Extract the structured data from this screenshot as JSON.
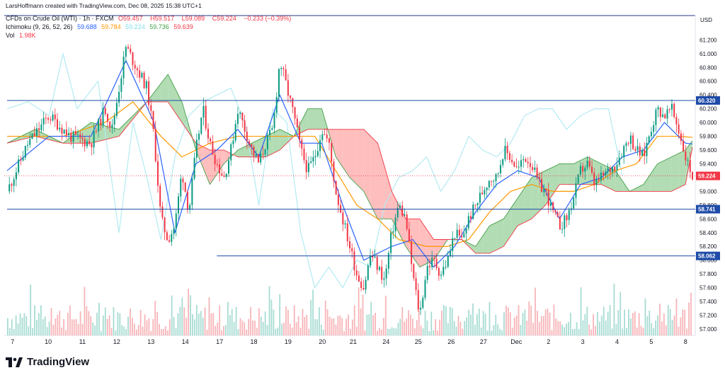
{
  "header": {
    "credit": "LarsHoffmann created with TradingView.com, Dec 08, 2025 15:38 UTC+1",
    "symbol": "CFDs on Crude Oil (WTI) · 1h · FXCM",
    "o_label": "O",
    "o_value": "59.457",
    "h_label": "H",
    "h_value": "59.517",
    "l_label": "L",
    "l_value": "59.089",
    "c_label": "C",
    "c_value": "59.224",
    "change": "−0.233 (−0.39%)",
    "ichimoku_label": "Ichimoku (9, 26, 52, 26)",
    "ichimoku_values": [
      "59.688",
      "59.784",
      "59.224",
      "59.736",
      "59.639"
    ],
    "vol_label": "Vol",
    "vol_value": "1.98K"
  },
  "brand": "TradingView",
  "colors": {
    "up": "#089981",
    "down": "#f23645",
    "tenkan": "#2962ff",
    "kijun": "#ff9800",
    "chikou": "#b2ebf2",
    "span_a": "#43a047",
    "span_b": "#f23645",
    "cloud_up": "#a5d6a7",
    "cloud_down": "#ffb3b3",
    "hline": "#1e4ba8"
  },
  "chart_data": {
    "type": "candlestick",
    "currency": "USD",
    "y_range": [
      56.9,
      61.35
    ],
    "y_ticks": [
      "61.200",
      "61.000",
      "60.800",
      "60.600",
      "60.400",
      "60.200",
      "60.000",
      "59.800",
      "59.600",
      "59.400",
      "59.200",
      "59.000",
      "58.800",
      "58.600",
      "58.400",
      "58.200",
      "58.000",
      "57.800",
      "57.600",
      "57.400",
      "57.200",
      "57.000"
    ],
    "x_labels": [
      "7",
      "10",
      "11",
      "12",
      "13",
      "14",
      "17",
      "18",
      "19",
      "20",
      "21",
      "24",
      "25",
      "26",
      "27",
      "Dec",
      "2",
      "3",
      "4",
      "5",
      "8"
    ],
    "price_path": [
      [
        0,
        59.0
      ],
      [
        3,
        59.7
      ],
      [
        6,
        60.1
      ],
      [
        9,
        59.8
      ],
      [
        12,
        59.7
      ],
      [
        14,
        60.2
      ],
      [
        15,
        59.9
      ],
      [
        17,
        61.1
      ],
      [
        18,
        60.9
      ],
      [
        20,
        60.5
      ],
      [
        21,
        59.8
      ],
      [
        22,
        58.6
      ],
      [
        23,
        58.3
      ],
      [
        24,
        58.5
      ],
      [
        25,
        59.3
      ],
      [
        26,
        58.7
      ],
      [
        27,
        59.6
      ],
      [
        28,
        60.2
      ],
      [
        29,
        59.7
      ],
      [
        30,
        59.4
      ],
      [
        31,
        59.2
      ],
      [
        32,
        59.6
      ],
      [
        33,
        60.2
      ],
      [
        34,
        59.9
      ],
      [
        35,
        59.6
      ],
      [
        36,
        59.4
      ],
      [
        37,
        59.7
      ],
      [
        38,
        59.9
      ],
      [
        39,
        60.9
      ],
      [
        40,
        60.5
      ],
      [
        41,
        60.1
      ],
      [
        42,
        59.6
      ],
      [
        43,
        59.3
      ],
      [
        44,
        59.5
      ],
      [
        45,
        59.9
      ],
      [
        46,
        59.7
      ],
      [
        47,
        59.0
      ],
      [
        48,
        58.6
      ],
      [
        49,
        58.2
      ],
      [
        50,
        57.8
      ],
      [
        51,
        57.6
      ],
      [
        52,
        58.1
      ],
      [
        53,
        57.9
      ],
      [
        54,
        57.7
      ],
      [
        55,
        58.4
      ],
      [
        56,
        58.8
      ],
      [
        57,
        58.6
      ],
      [
        58,
        57.8
      ],
      [
        59,
        57.2
      ],
      [
        60,
        57.9
      ],
      [
        61,
        58.0
      ],
      [
        62,
        57.8
      ],
      [
        63,
        58.0
      ],
      [
        64,
        58.4
      ],
      [
        65,
        58.3
      ],
      [
        66,
        58.6
      ],
      [
        67,
        58.8
      ],
      [
        68,
        59.0
      ],
      [
        69,
        59.2
      ],
      [
        70,
        59.2
      ],
      [
        71,
        59.6
      ],
      [
        72,
        59.5
      ],
      [
        73,
        59.3
      ],
      [
        74,
        59.5
      ],
      [
        75,
        59.4
      ],
      [
        76,
        59.1
      ],
      [
        77,
        59.0
      ],
      [
        78,
        58.7
      ],
      [
        79,
        58.5
      ],
      [
        80,
        58.6
      ],
      [
        81,
        58.9
      ],
      [
        82,
        59.3
      ],
      [
        83,
        59.4
      ],
      [
        84,
        59.1
      ],
      [
        85,
        59.2
      ],
      [
        86,
        59.3
      ],
      [
        87,
        59.4
      ],
      [
        88,
        59.6
      ],
      [
        89,
        59.8
      ],
      [
        90,
        59.6
      ],
      [
        91,
        59.5
      ],
      [
        92,
        59.9
      ],
      [
        93,
        60.2
      ],
      [
        94,
        60.1
      ],
      [
        95,
        60.2
      ],
      [
        96,
        59.9
      ],
      [
        97,
        59.5
      ],
      [
        98,
        59.224
      ]
    ],
    "tenkan_path": [
      [
        0,
        59.3
      ],
      [
        6,
        59.8
      ],
      [
        12,
        59.8
      ],
      [
        17,
        60.9
      ],
      [
        21,
        60.0
      ],
      [
        24,
        58.4
      ],
      [
        27,
        59.4
      ],
      [
        30,
        59.6
      ],
      [
        33,
        59.9
      ],
      [
        36,
        59.5
      ],
      [
        39,
        60.4
      ],
      [
        42,
        59.7
      ],
      [
        45,
        59.7
      ],
      [
        48,
        58.8
      ],
      [
        51,
        58.0
      ],
      [
        55,
        58.2
      ],
      [
        58,
        58.3
      ],
      [
        61,
        57.9
      ],
      [
        64,
        58.2
      ],
      [
        67,
        58.7
      ],
      [
        70,
        59.1
      ],
      [
        73,
        59.3
      ],
      [
        76,
        59.2
      ],
      [
        79,
        58.6
      ],
      [
        82,
        59.1
      ],
      [
        85,
        59.2
      ],
      [
        88,
        59.5
      ],
      [
        91,
        59.6
      ],
      [
        94,
        60.0
      ],
      [
        97,
        59.7
      ],
      [
        98,
        59.688
      ]
    ],
    "kijun_path": [
      [
        0,
        59.8
      ],
      [
        8,
        59.8
      ],
      [
        14,
        60.0
      ],
      [
        18,
        60.3
      ],
      [
        22,
        59.8
      ],
      [
        25,
        59.5
      ],
      [
        29,
        59.7
      ],
      [
        33,
        59.8
      ],
      [
        37,
        59.8
      ],
      [
        41,
        59.8
      ],
      [
        44,
        59.8
      ],
      [
        47,
        59.3
      ],
      [
        50,
        58.8
      ],
      [
        53,
        58.6
      ],
      [
        56,
        58.3
      ],
      [
        60,
        58.2
      ],
      [
        63,
        58.2
      ],
      [
        66,
        58.3
      ],
      [
        69,
        58.7
      ],
      [
        72,
        59.0
      ],
      [
        75,
        59.1
      ],
      [
        78,
        59.0
      ],
      [
        81,
        59.0
      ],
      [
        84,
        59.1
      ],
      [
        87,
        59.3
      ],
      [
        90,
        59.4
      ],
      [
        93,
        59.8
      ],
      [
        96,
        59.8
      ],
      [
        98,
        59.784
      ]
    ],
    "chikou_path": [
      [
        0,
        60.2
      ],
      [
        3,
        60.3
      ],
      [
        6,
        60.1
      ],
      [
        8,
        61.0
      ],
      [
        10,
        60.2
      ],
      [
        13,
        60.6
      ],
      [
        16,
        58.4
      ],
      [
        18,
        60.0
      ],
      [
        20,
        59.2
      ],
      [
        22,
        58.3
      ],
      [
        24,
        59.5
      ],
      [
        26,
        60.1
      ],
      [
        28,
        60.3
      ],
      [
        30,
        60.4
      ],
      [
        32,
        60.5
      ],
      [
        34,
        60.0
      ],
      [
        36,
        58.8
      ],
      [
        38,
        60.2
      ],
      [
        40,
        60.0
      ],
      [
        42,
        58.4
      ],
      [
        44,
        57.6
      ],
      [
        46,
        57.9
      ],
      [
        48,
        57.6
      ],
      [
        50,
        58.0
      ],
      [
        52,
        57.9
      ],
      [
        54,
        58.8
      ],
      [
        56,
        59.2
      ],
      [
        58,
        59.3
      ],
      [
        60,
        59.5
      ],
      [
        62,
        59.0
      ],
      [
        64,
        59.3
      ],
      [
        66,
        59.8
      ],
      [
        68,
        59.6
      ],
      [
        70,
        59.5
      ],
      [
        72,
        59.7
      ],
      [
        74,
        60.1
      ],
      [
        76,
        60.2
      ],
      [
        78,
        60.2
      ],
      [
        80,
        59.9
      ],
      [
        82,
        60.1
      ],
      [
        84,
        60.2
      ],
      [
        86,
        60.2
      ],
      [
        88,
        59.224
      ]
    ],
    "span_a_path": [
      [
        0,
        59.7
      ],
      [
        4,
        59.9
      ],
      [
        8,
        59.7
      ],
      [
        12,
        60.0
      ],
      [
        16,
        59.9
      ],
      [
        20,
        60.3
      ],
      [
        23,
        60.7
      ],
      [
        25,
        60.3
      ],
      [
        27,
        59.6
      ],
      [
        29,
        59.1
      ],
      [
        31,
        59.4
      ],
      [
        33,
        59.6
      ],
      [
        35,
        59.7
      ],
      [
        37,
        59.8
      ],
      [
        39,
        59.9
      ],
      [
        41,
        59.8
      ],
      [
        43,
        60.2
      ],
      [
        45,
        60.2
      ],
      [
        47,
        59.5
      ],
      [
        49,
        59.2
      ],
      [
        51,
        59.0
      ],
      [
        53,
        58.6
      ],
      [
        55,
        58.6
      ],
      [
        57,
        58.2
      ],
      [
        59,
        57.9
      ],
      [
        61,
        58.0
      ],
      [
        63,
        58.3
      ],
      [
        65,
        58.3
      ],
      [
        67,
        58.2
      ],
      [
        69,
        58.5
      ],
      [
        71,
        58.6
      ],
      [
        73,
        58.9
      ],
      [
        75,
        59.2
      ],
      [
        77,
        59.3
      ],
      [
        79,
        59.4
      ],
      [
        81,
        59.4
      ],
      [
        83,
        59.5
      ],
      [
        85,
        59.4
      ],
      [
        87,
        59.3
      ],
      [
        89,
        59.0
      ],
      [
        91,
        59.1
      ],
      [
        93,
        59.4
      ],
      [
        95,
        59.5
      ],
      [
        97,
        59.6
      ],
      [
        98,
        59.736
      ]
    ],
    "span_b_path": [
      [
        0,
        59.7
      ],
      [
        4,
        59.8
      ],
      [
        8,
        59.7
      ],
      [
        12,
        59.7
      ],
      [
        16,
        59.8
      ],
      [
        20,
        60.3
      ],
      [
        23,
        60.3
      ],
      [
        25,
        60.0
      ],
      [
        27,
        59.7
      ],
      [
        29,
        59.6
      ],
      [
        31,
        59.6
      ],
      [
        33,
        59.5
      ],
      [
        35,
        59.5
      ],
      [
        37,
        59.5
      ],
      [
        39,
        59.6
      ],
      [
        41,
        59.8
      ],
      [
        43,
        59.9
      ],
      [
        45,
        59.9
      ],
      [
        47,
        59.9
      ],
      [
        49,
        59.9
      ],
      [
        51,
        59.9
      ],
      [
        53,
        59.7
      ],
      [
        55,
        59.0
      ],
      [
        57,
        58.6
      ],
      [
        59,
        58.6
      ],
      [
        61,
        58.3
      ],
      [
        63,
        58.3
      ],
      [
        65,
        58.3
      ],
      [
        67,
        58.1
      ],
      [
        69,
        58.1
      ],
      [
        71,
        58.2
      ],
      [
        73,
        58.5
      ],
      [
        75,
        58.6
      ],
      [
        77,
        58.8
      ],
      [
        79,
        59.1
      ],
      [
        81,
        59.1
      ],
      [
        83,
        59.1
      ],
      [
        85,
        59.1
      ],
      [
        87,
        59.0
      ],
      [
        89,
        59.0
      ],
      [
        91,
        59.0
      ],
      [
        93,
        59.0
      ],
      [
        95,
        59.0
      ],
      [
        97,
        59.1
      ],
      [
        98,
        59.639
      ]
    ],
    "horizontal_levels": [
      {
        "value": 60.32,
        "label": "60.320",
        "from_bar": 0
      },
      {
        "value": 58.741,
        "label": "58.741",
        "from_bar": 0
      },
      {
        "value": 58.062,
        "label": "58.062",
        "from_bar": 30
      }
    ],
    "current_price": {
      "value": 59.224,
      "label": "59.224"
    }
  }
}
